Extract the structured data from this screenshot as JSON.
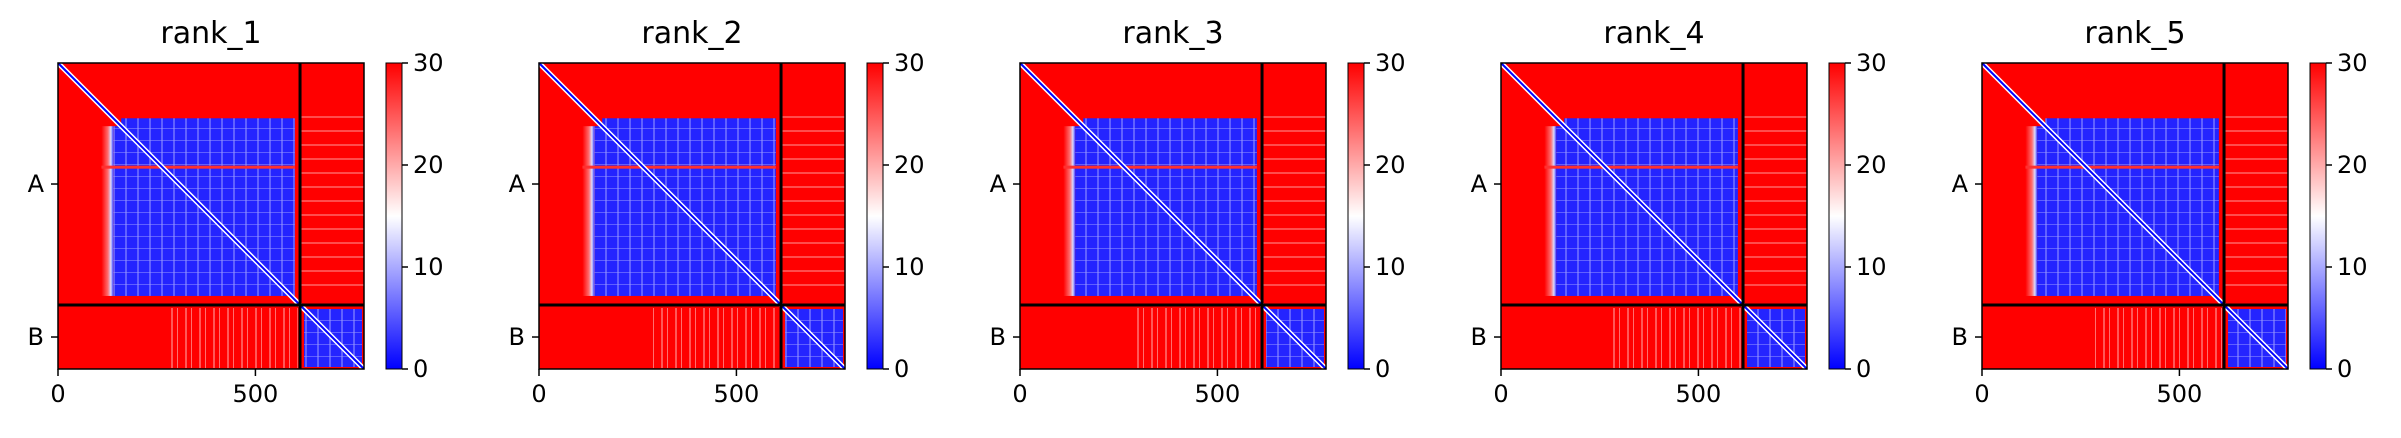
{
  "chart_data": {
    "type": "heatmap",
    "colormap": "bwr",
    "colormap_colors": {
      "low": "#0000ff",
      "mid": "#ffffff",
      "high": "#ff0000"
    },
    "separator_color": "#000000",
    "clim": [
      0,
      30
    ],
    "colorbar_ticks": [
      "0",
      "10",
      "20",
      "30"
    ],
    "xlim": [
      0,
      775
    ],
    "x_ticks": [
      {
        "value": 0,
        "label": "0"
      },
      {
        "value": 500,
        "label": "500"
      }
    ],
    "chain_boundary": 613,
    "chains": [
      {
        "label": "A",
        "start": 0,
        "end": 613
      },
      {
        "label": "B",
        "start": 613,
        "end": 775
      }
    ],
    "panels": [
      {
        "title": "rank_1"
      },
      {
        "title": "rank_2"
      },
      {
        "title": "rank_3"
      },
      {
        "title": "rank_4"
      },
      {
        "title": "rank_5"
      }
    ]
  }
}
